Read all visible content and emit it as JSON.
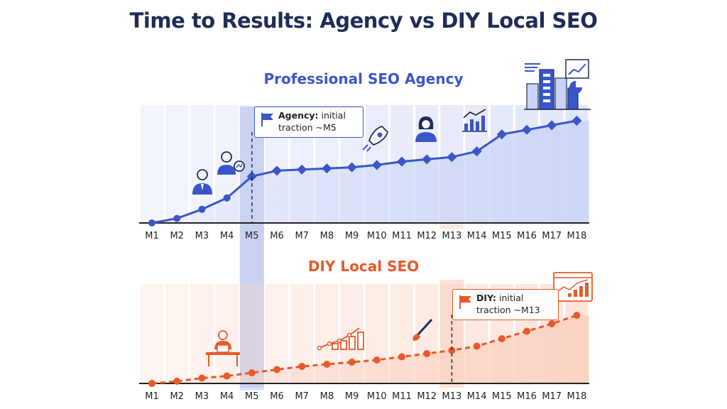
{
  "title": "Time to Results: Agency vs DIY Local SEO",
  "colors": {
    "agency": "#3a56c8",
    "diy": "#e8592a",
    "title": "#1e2d57"
  },
  "icons": {
    "agency": [
      "person-icon",
      "analyst-icon",
      "rocket-icon",
      "woman-icon",
      "chart-icon",
      "buildings-icon",
      "report-icon"
    ],
    "diy": [
      "laptop-worker-icon",
      "growth-chart-icon",
      "paintbrush-icon",
      "browser-chart-icon"
    ]
  },
  "annotations": {
    "agency": {
      "bold": "Agency:",
      "text1": " initial",
      "text2": "traction ~M5"
    },
    "diy": {
      "bold": "DIY:",
      "text1": " initial",
      "text2": "traction ~M13"
    }
  },
  "chart_data": [
    {
      "type": "line",
      "title": "Professional SEO Agency",
      "categories": [
        "M1",
        "M2",
        "M3",
        "M4",
        "M5",
        "M6",
        "M7",
        "M8",
        "M9",
        "M10",
        "M11",
        "M12",
        "M13",
        "M14",
        "M15",
        "M16",
        "M17",
        "M18"
      ],
      "values": [
        0,
        4,
        12,
        22,
        41,
        46,
        47,
        48,
        49,
        51,
        54,
        56,
        58,
        63,
        78,
        82,
        86,
        90
      ],
      "ylim": [
        0,
        100
      ],
      "line_style": "solid",
      "highlight": "M5"
    },
    {
      "type": "line",
      "title": "DIY Local SEO",
      "categories": [
        "M1",
        "M2",
        "M3",
        "M4",
        "M5",
        "M6",
        "M7",
        "M8",
        "M9",
        "M10",
        "M11",
        "M12",
        "M13",
        "M14",
        "M15",
        "M16",
        "M17",
        "M18"
      ],
      "values": [
        0,
        2,
        5,
        7,
        10,
        13,
        16,
        18,
        20,
        22,
        25,
        28,
        31,
        35,
        42,
        49,
        56,
        64
      ],
      "ylim": [
        0,
        100
      ],
      "line_style": "dashed",
      "highlight": "M13"
    }
  ]
}
